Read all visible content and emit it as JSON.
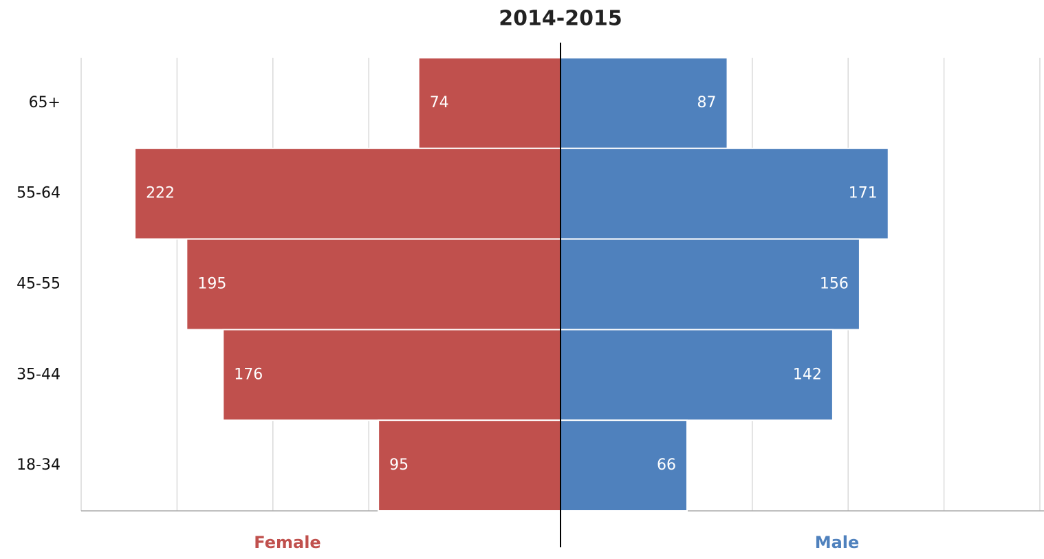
{
  "chart_data": {
    "type": "pyramid",
    "title": "2014-2015",
    "categories": [
      "65+",
      "55-64",
      "45-55",
      "35-44",
      "18-34"
    ],
    "series": [
      {
        "name": "Female",
        "color": "#c0504d",
        "values": [
          74,
          222,
          195,
          176,
          95
        ]
      },
      {
        "name": "Male",
        "color": "#4f81bd",
        "values": [
          87,
          171,
          156,
          142,
          66
        ]
      }
    ],
    "xlim": [
      0,
      250
    ],
    "xticks": [
      50,
      100,
      150,
      200,
      250
    ],
    "grid": true
  }
}
